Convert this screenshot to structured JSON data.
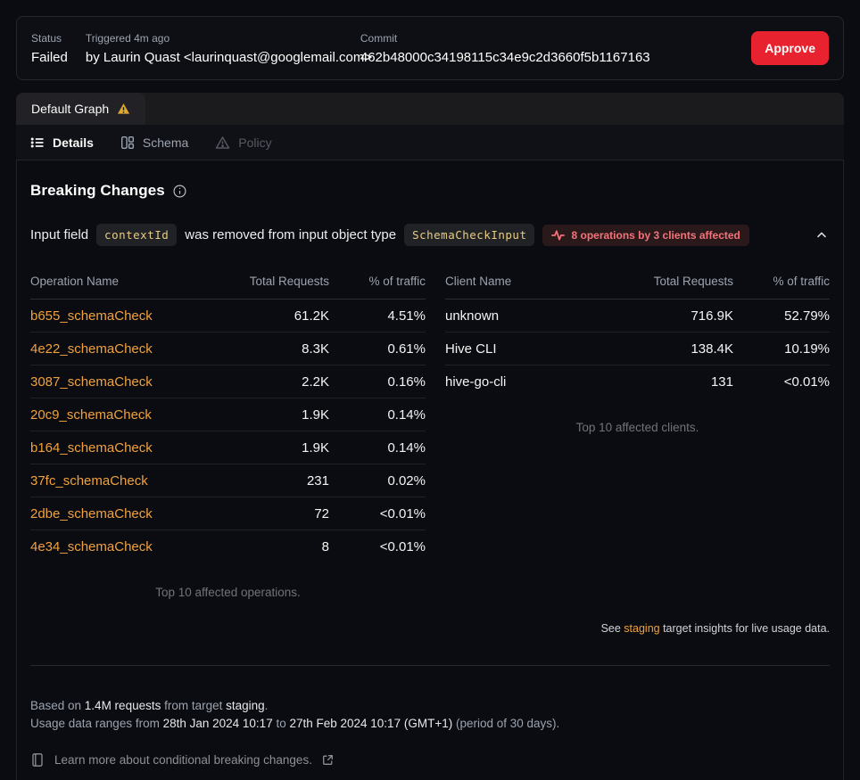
{
  "header": {
    "status_label": "Status",
    "status_value": "Failed",
    "triggered_label": "Triggered 4m ago",
    "triggered_value": "by Laurin Quast <laurinquast@googlemail.com>",
    "commit_label": "Commit",
    "commit_value": "462b48000c34198115c34e9c2d3660f5b1167163",
    "approve_label": "Approve"
  },
  "tabs": {
    "graph_tab": "Default Graph",
    "subtabs": [
      {
        "label": "Details",
        "active": true
      },
      {
        "label": "Schema",
        "active": false
      },
      {
        "label": "Policy",
        "active": false
      }
    ]
  },
  "breaking_changes": {
    "title": "Breaking Changes",
    "change": {
      "prefix": "Input field",
      "field_code": "contextId",
      "middle": "was removed from input object type",
      "type_code": "SchemaCheckInput",
      "badge": "8 operations by 3 clients affected"
    }
  },
  "operations_table": {
    "headers": [
      "Operation Name",
      "Total Requests",
      "% of traffic"
    ],
    "rows": [
      [
        "b655_schemaCheck",
        "61.2K",
        "4.51%"
      ],
      [
        "4e22_schemaCheck",
        "8.3K",
        "0.61%"
      ],
      [
        "3087_schemaCheck",
        "2.2K",
        "0.16%"
      ],
      [
        "20c9_schemaCheck",
        "1.9K",
        "0.14%"
      ],
      [
        "b164_schemaCheck",
        "1.9K",
        "0.14%"
      ],
      [
        "37fc_schemaCheck",
        "231",
        "0.02%"
      ],
      [
        "2dbe_schemaCheck",
        "72",
        "<0.01%"
      ],
      [
        "4e34_schemaCheck",
        "8",
        "<0.01%"
      ]
    ],
    "caption": "Top 10 affected operations."
  },
  "clients_table": {
    "headers": [
      "Client Name",
      "Total Requests",
      "% of traffic"
    ],
    "rows": [
      [
        "unknown",
        "716.9K",
        "52.79%"
      ],
      [
        "Hive CLI",
        "138.4K",
        "10.19%"
      ],
      [
        "hive-go-cli",
        "131",
        "<0.01%"
      ]
    ],
    "caption": "Top 10 affected clients."
  },
  "insights_note": {
    "prefix": "See ",
    "link": "staging",
    "suffix": " target insights for live usage data."
  },
  "footer": {
    "based_prefix": "Based on ",
    "based_strong1": "1.4M requests",
    "based_mid": " from target ",
    "based_strong2": "staging",
    "based_suffix": ".",
    "range_prefix": "Usage data ranges from ",
    "range_date1": "28th Jan 2024 10:17",
    "range_to": " to ",
    "range_date2": "27th Feb 2024 10:17 (GMT+1)",
    "range_suffix": " (period of 30 days).",
    "learn_more": "Learn more about conditional breaking changes."
  },
  "colors": {
    "accent_orange": "#f1a13d",
    "code_yellow": "#e6cc85",
    "danger_red": "#e8232f",
    "badge_red": "#f4737b",
    "warning_yellow": "#e0a82e",
    "background": "#0a0c11"
  }
}
